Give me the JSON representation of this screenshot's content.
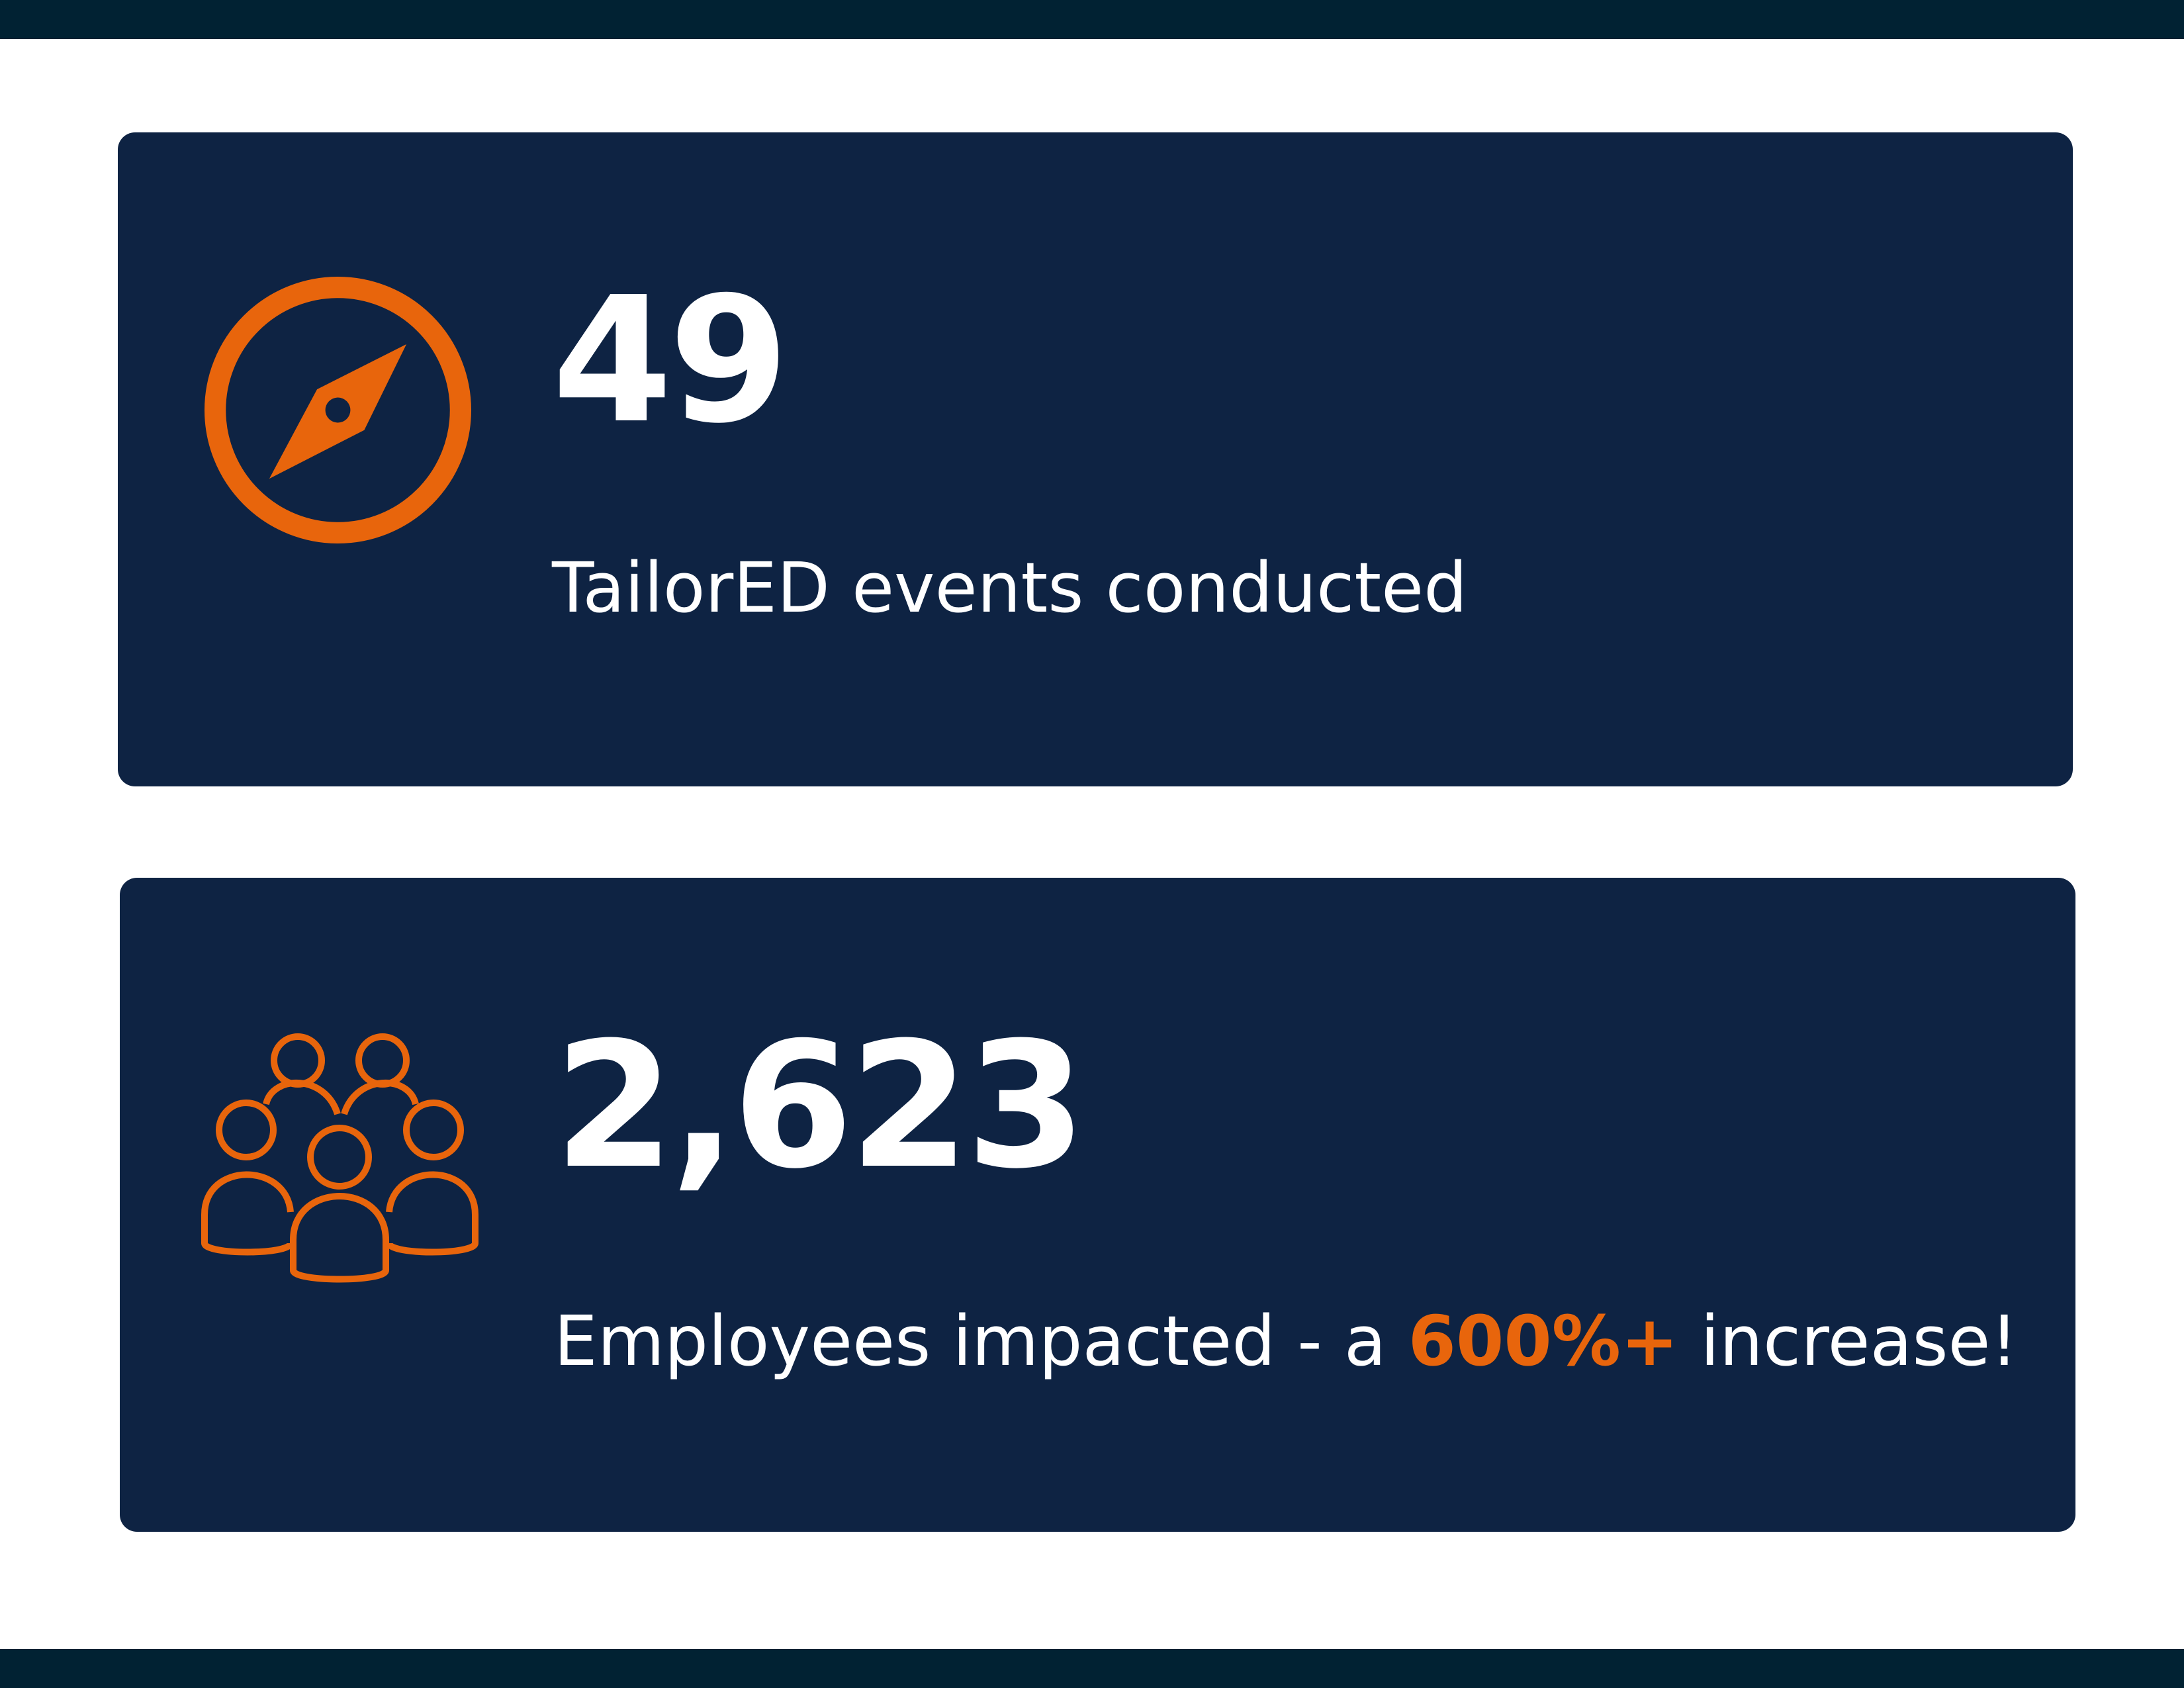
{
  "colors": {
    "band": "#012233",
    "card_background": "#0e2343",
    "accent": "#e8650c",
    "text": "#ffffff",
    "page_background": "#ffffff"
  },
  "stats": [
    {
      "icon": "compass-icon",
      "number": "49",
      "caption": "TailorED events conducted"
    },
    {
      "icon": "group-people-icon",
      "number": "2,623",
      "caption_before": "Employees impacted - a ",
      "caption_highlight": "600%+",
      "caption_after": " increase!"
    }
  ]
}
